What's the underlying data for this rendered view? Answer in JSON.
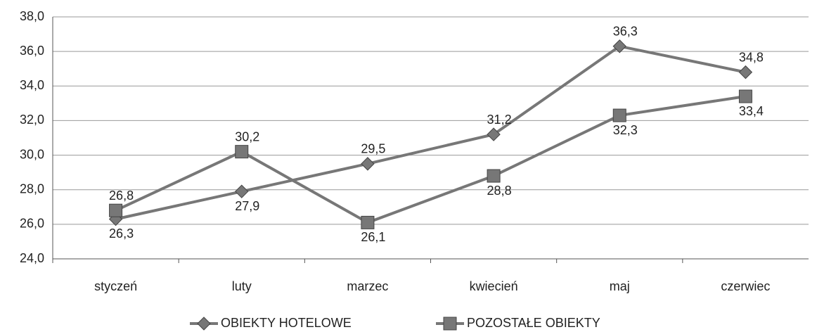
{
  "chart_data": {
    "type": "line",
    "categories": [
      "styczeń",
      "luty",
      "marzec",
      "kwiecień",
      "maj",
      "czerwiec"
    ],
    "series": [
      {
        "name": "OBIEKTY HOTELOWE",
        "color": "#777777",
        "marker": "diamond",
        "values": [
          26.3,
          27.9,
          29.5,
          31.2,
          36.3,
          34.8
        ],
        "value_labels": [
          "26,3",
          "27,9",
          "29,5",
          "31,2",
          "36,3",
          "34,8"
        ]
      },
      {
        "name": "POZOSTAŁE OBIEKTY",
        "color": "#777777",
        "marker": "square",
        "values": [
          26.8,
          30.2,
          26.1,
          28.8,
          32.3,
          33.4
        ],
        "value_labels": [
          "26,8",
          "30,2",
          "26,1",
          "28,8",
          "32,3",
          "33,4"
        ]
      }
    ],
    "ylim": [
      24,
      38
    ],
    "yticks": [
      {
        "value": 24,
        "label": "24,0"
      },
      {
        "value": 26,
        "label": "26,0"
      },
      {
        "value": 28,
        "label": "28,0"
      },
      {
        "value": 30,
        "label": "30,0"
      },
      {
        "value": 32,
        "label": "32,0"
      },
      {
        "value": 34,
        "label": "34,0"
      },
      {
        "value": 36,
        "label": "36,0"
      },
      {
        "value": 38,
        "label": "38,0"
      }
    ],
    "grid": true,
    "legend": "bottom"
  }
}
